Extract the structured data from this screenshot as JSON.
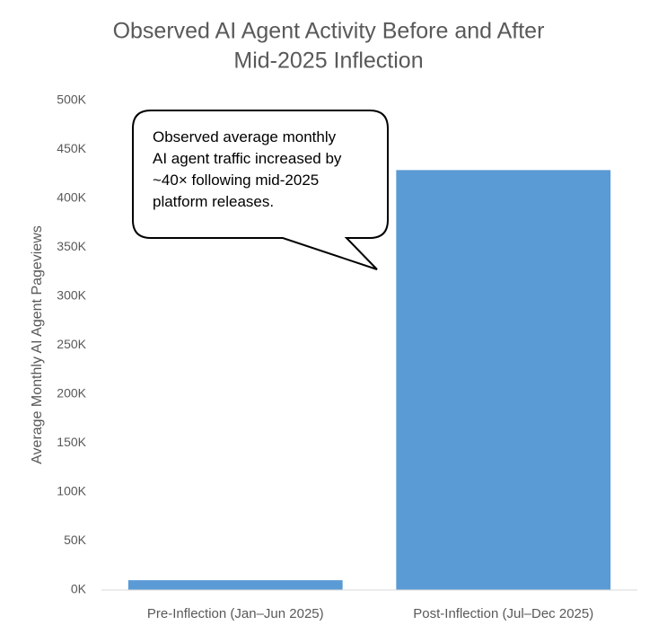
{
  "chart_data": {
    "type": "bar",
    "title": [
      "Observed AI Agent Activity Before and After",
      "Mid-2025 Inflection"
    ],
    "y_label": "Average Monthly AI Agent Pageviews",
    "categories": [
      "Pre-Inflection (Jan–Jun 2025)",
      "Post-Inflection (Jul–Dec 2025)"
    ],
    "values": [
      10000,
      429000
    ],
    "color": "#5b9bd5",
    "ylim": [
      0,
      500000
    ],
    "yticks": [
      {
        "value": 0,
        "label": "0K"
      },
      {
        "value": 50000,
        "label": "50K"
      },
      {
        "value": 100000,
        "label": "100K"
      },
      {
        "value": 150000,
        "label": "150K"
      },
      {
        "value": 200000,
        "label": "200K"
      },
      {
        "value": 250000,
        "label": "250K"
      },
      {
        "value": 300000,
        "label": "300K"
      },
      {
        "value": 350000,
        "label": "350K"
      },
      {
        "value": 400000,
        "label": "400K"
      },
      {
        "value": 450000,
        "label": "450K"
      },
      {
        "value": 500000,
        "label": "500K"
      }
    ],
    "grid": false,
    "annotation": [
      "Observed average monthly",
      "AI agent traffic increased by",
      "~40× following mid-2025",
      "platform releases."
    ]
  }
}
